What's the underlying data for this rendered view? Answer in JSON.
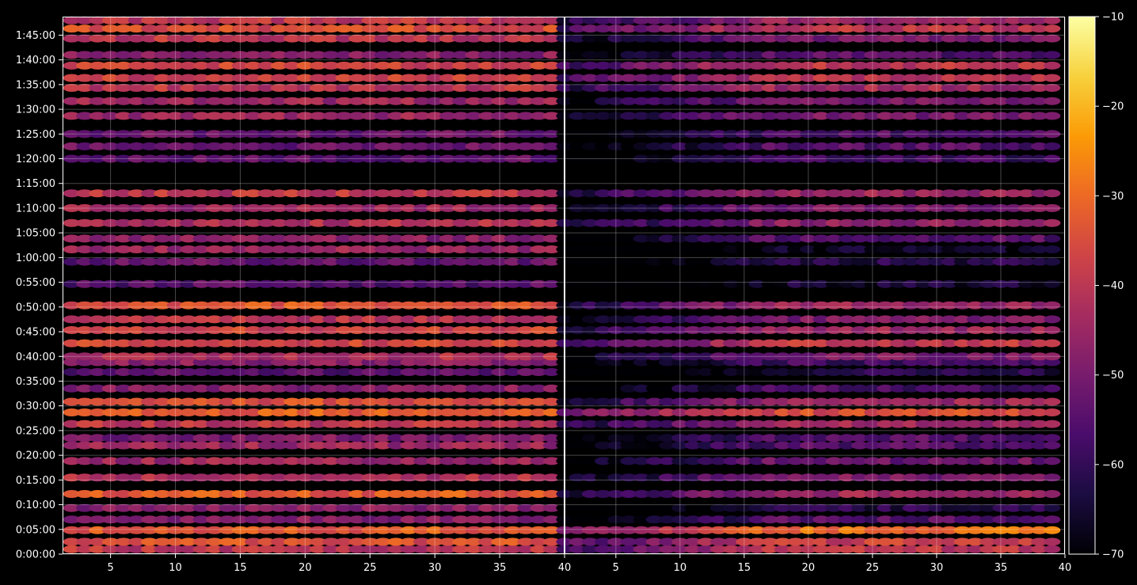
{
  "chart_data": {
    "type": "heatmap",
    "title": "",
    "xlabel": "",
    "ylabel": "",
    "background": "#000000",
    "grid": true,
    "colormap": "inferno",
    "colormap_stops": [
      "#000004",
      "#1b0c41",
      "#4a0c6b",
      "#781c6d",
      "#a52c60",
      "#cf4446",
      "#ed6925",
      "#fb9b06",
      "#f7d13d",
      "#fcffa4"
    ],
    "panels": [
      {
        "name": "left",
        "x_ticks": [
          5,
          10,
          15,
          20,
          25,
          30,
          35
        ],
        "x_tick_labels": [
          "5",
          "10",
          "15",
          "20",
          "25",
          "30",
          "35"
        ],
        "xlim": [
          1.3,
          40
        ],
        "columns_x": [
          2,
          39
        ]
      },
      {
        "name": "right",
        "x_ticks": [
          5,
          10,
          15,
          20,
          25,
          30,
          35,
          40
        ],
        "x_tick_labels": [
          "5",
          "10",
          "15",
          "20",
          "25",
          "30",
          "35",
          "40"
        ],
        "xlim": [
          1,
          40
        ],
        "columns_x": [
          1,
          39
        ]
      }
    ],
    "left_panel_end_label": "40",
    "y_axis": {
      "unit": "seconds",
      "ylim": [
        0,
        6525
      ],
      "ticks": [
        0,
        300,
        600,
        900,
        1200,
        1500,
        1800,
        2100,
        2400,
        2700,
        3000,
        3300,
        3600,
        3900,
        4200,
        4500,
        4800,
        5100,
        5400,
        5700,
        6000,
        6300
      ],
      "tick_labels": [
        "0:00:00",
        "0:05:00",
        "0:10:00",
        "0:15:00",
        "0:20:00",
        "0:25:00",
        "0:30:00",
        "0:35:00",
        "0:40:00",
        "0:45:00",
        "0:50:00",
        "0:55:00",
        "1:00:00",
        "1:05:00",
        "1:10:00",
        "1:15:00",
        "1:20:00",
        "1:25:00",
        "1:30:00",
        "1:35:00",
        "1:40:00",
        "1:45:00"
      ]
    },
    "colorbar": {
      "range": [
        -70,
        -10
      ],
      "ticks": [
        -70,
        -60,
        -50,
        -40,
        -30,
        -20,
        -10
      ],
      "tick_labels": [
        "−70",
        "−60",
        "−50",
        "−40",
        "−30",
        "−20",
        "−10"
      ]
    },
    "rows": [
      {
        "t": 60,
        "left": -40,
        "right": -40
      },
      {
        "t": 150,
        "left": -35,
        "right": -38
      },
      {
        "t": 290,
        "left": -33,
        "right": -30
      },
      {
        "t": 420,
        "left": -48,
        "right": -55
      },
      {
        "t": 560,
        "left": -48,
        "right": -62
      },
      {
        "t": 730,
        "left": -33,
        "right": -45
      },
      {
        "t": 930,
        "left": -42,
        "right": -50
      },
      {
        "t": 1130,
        "left": -45,
        "right": -52
      },
      {
        "t": 1320,
        "left": -45,
        "right": -55
      },
      {
        "t": 1410,
        "left": -50,
        "right": -55
      },
      {
        "t": 1580,
        "left": -40,
        "right": -45
      },
      {
        "t": 1720,
        "left": -32,
        "right": -35
      },
      {
        "t": 1850,
        "left": -35,
        "right": -45
      },
      {
        "t": 2010,
        "left": -48,
        "right": -57
      },
      {
        "t": 2210,
        "left": -55,
        "right": -62
      },
      {
        "t": 2330,
        "left": -48,
        "right": -58
      },
      {
        "t": 2400,
        "left": -42,
        "right": -50
      },
      {
        "t": 2560,
        "left": -36,
        "right": -40
      },
      {
        "t": 2720,
        "left": -37,
        "right": -45
      },
      {
        "t": 2850,
        "left": -41,
        "right": -50
      },
      {
        "t": 3020,
        "left": -34,
        "right": -45
      },
      {
        "t": 3280,
        "left": -55,
        "right": -65
      },
      {
        "t": 3550,
        "left": -53,
        "right": -62
      },
      {
        "t": 3700,
        "left": -45,
        "right": -66
      },
      {
        "t": 3830,
        "left": -48,
        "right": -55
      },
      {
        "t": 4020,
        "left": -42,
        "right": -47
      },
      {
        "t": 4200,
        "left": -45,
        "right": -50
      },
      {
        "t": 4380,
        "left": -40,
        "right": -45
      },
      {
        "t": 4800,
        "left": -54,
        "right": -58
      },
      {
        "t": 4950,
        "left": -52,
        "right": -55
      },
      {
        "t": 5100,
        "left": -52,
        "right": -56
      },
      {
        "t": 5320,
        "left": -45,
        "right": -50
      },
      {
        "t": 5500,
        "left": -45,
        "right": -50
      },
      {
        "t": 5660,
        "left": -40,
        "right": -44
      },
      {
        "t": 5780,
        "left": -38,
        "right": -40
      },
      {
        "t": 5930,
        "left": -37,
        "right": -40
      },
      {
        "t": 6060,
        "left": -48,
        "right": -55
      },
      {
        "t": 6260,
        "left": -40,
        "right": -50
      },
      {
        "t": 6380,
        "left": -35,
        "right": -40
      },
      {
        "t": 6480,
        "left": -40,
        "right": -45
      }
    ]
  }
}
